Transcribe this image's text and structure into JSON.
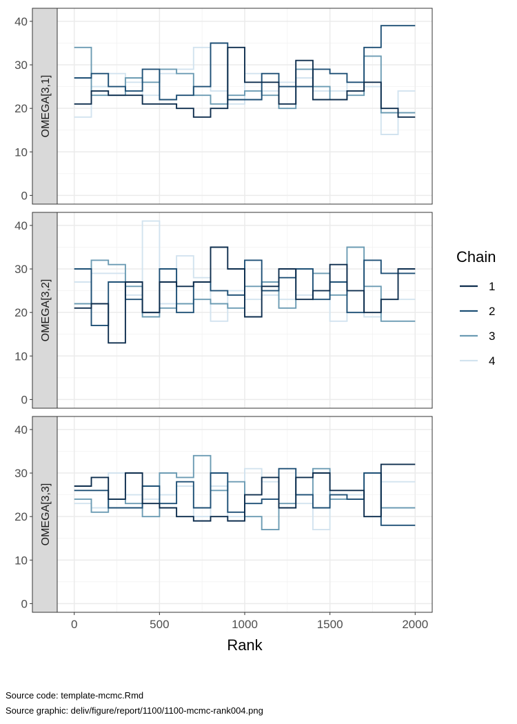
{
  "chart_data": {
    "type": "line",
    "step": true,
    "xlabel": "Rank",
    "xlim": [
      -100,
      2100
    ],
    "ylim": [
      -2,
      43
    ],
    "x_ticks": [
      0,
      500,
      1000,
      1500,
      2000
    ],
    "y_ticks": [
      0,
      10,
      20,
      30,
      40
    ],
    "grid": true,
    "legend": {
      "title": "Chain",
      "placement": "right"
    },
    "series_colors": [
      "#0d2d4d",
      "#1d4f75",
      "#6b9bb3",
      "#d2e3ef"
    ],
    "bin_edges": [
      0,
      100,
      200,
      300,
      400,
      500,
      600,
      700,
      800,
      900,
      1000,
      1100,
      1200,
      1300,
      1400,
      1500,
      1600,
      1700,
      1800,
      1900,
      2000
    ],
    "panels": [
      {
        "label": "OMEGA[3,1]",
        "series": [
          {
            "name": "1",
            "values": [
              21,
              24,
              23,
              23,
              21,
              21,
              20,
              18,
              20,
              34,
              26,
              26,
              21,
              31,
              22,
              22,
              24,
              26,
              20,
              18
            ]
          },
          {
            "name": "2",
            "values": [
              27,
              28,
              25,
              24,
              29,
              22,
              23,
              25,
              35,
              22,
              22,
              28,
              25,
              25,
              29,
              28,
              26,
              34,
              39,
              39
            ]
          },
          {
            "name": "3",
            "values": [
              34,
              23,
              23,
              27,
              26,
              29,
              28,
              23,
              21,
              23,
              24,
              23,
              20,
              29,
              25,
              22,
              23,
              32,
              19,
              19
            ]
          },
          {
            "name": "4",
            "values": [
              18,
              25,
              28,
              26,
              23,
              28,
              29,
              34,
              24,
              21,
              28,
              24,
              26,
              27,
              24,
              24,
              26,
              25,
              14,
              24
            ]
          }
        ]
      },
      {
        "label": "OMEGA[3,2]",
        "series": [
          {
            "name": "1",
            "values": [
              21,
              22,
              13,
              27,
              20,
              27,
              26,
              27,
              35,
              30,
              19,
              26,
              30,
              23,
              25,
              31,
              25,
              20,
              23,
              30
            ]
          },
          {
            "name": "2",
            "values": [
              30,
              17,
              27,
              23,
              20,
              30,
              20,
              27,
              25,
              24,
              32,
              25,
              28,
              30,
              23,
              27,
              20,
              32,
              29,
              29
            ]
          },
          {
            "name": "3",
            "values": [
              22,
              32,
              31,
              26,
              19,
              21,
              22,
              23,
              22,
              21,
              26,
              27,
              21,
              30,
              29,
              24,
              35,
              26,
              18,
              18
            ]
          },
          {
            "name": "4",
            "values": [
              27,
              29,
              29,
              24,
              41,
              22,
              33,
              28,
              18,
              25,
              23,
              24,
              23,
              24,
              29,
              18,
              20,
              19,
              23,
              23
            ]
          }
        ]
      },
      {
        "label": "OMEGA[3,3]",
        "series": [
          {
            "name": "1",
            "values": [
              27,
              29,
              24,
              30,
              23,
              22,
              20,
              19,
              20,
              19,
              25,
              29,
              22,
              29,
              30,
              26,
              26,
              20,
              32,
              32
            ]
          },
          {
            "name": "2",
            "values": [
              26,
              26,
              22,
              22,
              27,
              23,
              28,
              22,
              30,
              21,
              23,
              24,
              31,
              25,
              22,
              25,
              24,
              30,
              18,
              18
            ]
          },
          {
            "name": "3",
            "values": [
              24,
              21,
              24,
              23,
              20,
              30,
              29,
              34,
              26,
              28,
              20,
              17,
              23,
              25,
              31,
              24,
              24,
              30,
              22,
              22
            ]
          },
          {
            "name": "4",
            "values": [
              23,
              22,
              30,
              25,
              24,
              25,
              27,
              20,
              27,
              20,
              31,
              28,
              22,
              23,
              17,
              25,
              25,
              20,
              28,
              28
            ]
          }
        ]
      }
    ]
  },
  "footer": {
    "source_code": "Source code: template-mcmc.Rmd",
    "source_graphic": "Source graphic: deliv/figure/report/1100/1100-mcmc-rank004.png"
  }
}
